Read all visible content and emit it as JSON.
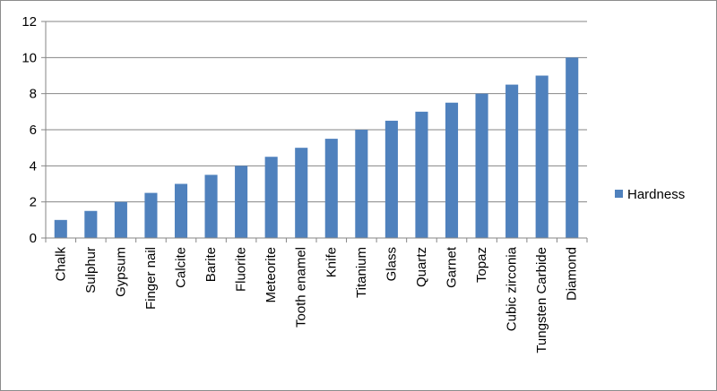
{
  "chart_data": {
    "type": "bar",
    "title": "",
    "xlabel": "",
    "ylabel": "",
    "categories": [
      "Chalk",
      "Sulphur",
      "Gypsum",
      "Finger nail",
      "Calcite",
      "Barite",
      "Fluorite",
      "Meteorite",
      "Tooth enamel",
      "Knife",
      "Titanium",
      "Glass",
      "Quartz",
      "Garnet",
      "Topaz",
      "Cubic zirconia",
      "Tungsten Carbide",
      "Diamond"
    ],
    "series": [
      {
        "name": "Hardness",
        "color": "#4f81bd",
        "values": [
          1,
          1.5,
          2,
          2.5,
          3,
          3.5,
          4,
          4.5,
          5,
          5.5,
          6,
          6.5,
          7,
          7.5,
          8,
          8.5,
          9,
          10
        ]
      }
    ],
    "ylim": [
      0,
      12
    ],
    "yticks": [
      0,
      2,
      4,
      6,
      8,
      10,
      12
    ],
    "grid": true,
    "legend": "right"
  }
}
